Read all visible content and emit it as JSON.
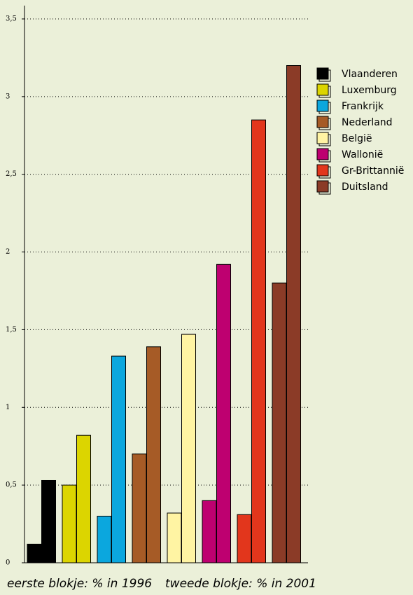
{
  "chart_data": {
    "type": "bar",
    "categories": [
      "Vlaanderen",
      "Luxemburg",
      "Frankrijk",
      "Nederland",
      "België",
      "Wallonië",
      "Gr-Brittannië",
      "Duitsland"
    ],
    "colors": [
      "#000000",
      "#dcd500",
      "#0ba7de",
      "#a65b26",
      "#fff4a3",
      "#be0070",
      "#e2361c",
      "#8b3b27"
    ],
    "series": [
      {
        "values": [
          0.12,
          0.5,
          0.3,
          0.7,
          0.32,
          0.4,
          0.31,
          1.8
        ]
      },
      {
        "values": [
          0.53,
          0.82,
          1.33,
          1.39,
          1.47,
          1.92,
          2.85,
          3.2
        ]
      }
    ],
    "ylim": [
      0,
      3.5
    ],
    "yticks": [
      0,
      {
        "value": 0.5,
        "label": "0,5"
      },
      1,
      {
        "value": 1.5,
        "label": "1,5"
      },
      2,
      {
        "value": 2.5,
        "label": "2,5"
      },
      3,
      {
        "value": 3.5,
        "label": "3,5"
      }
    ],
    "grid": true,
    "notes": [
      "eerste blokje: % in 1996",
      "tweede blokje: % in 2001"
    ]
  }
}
